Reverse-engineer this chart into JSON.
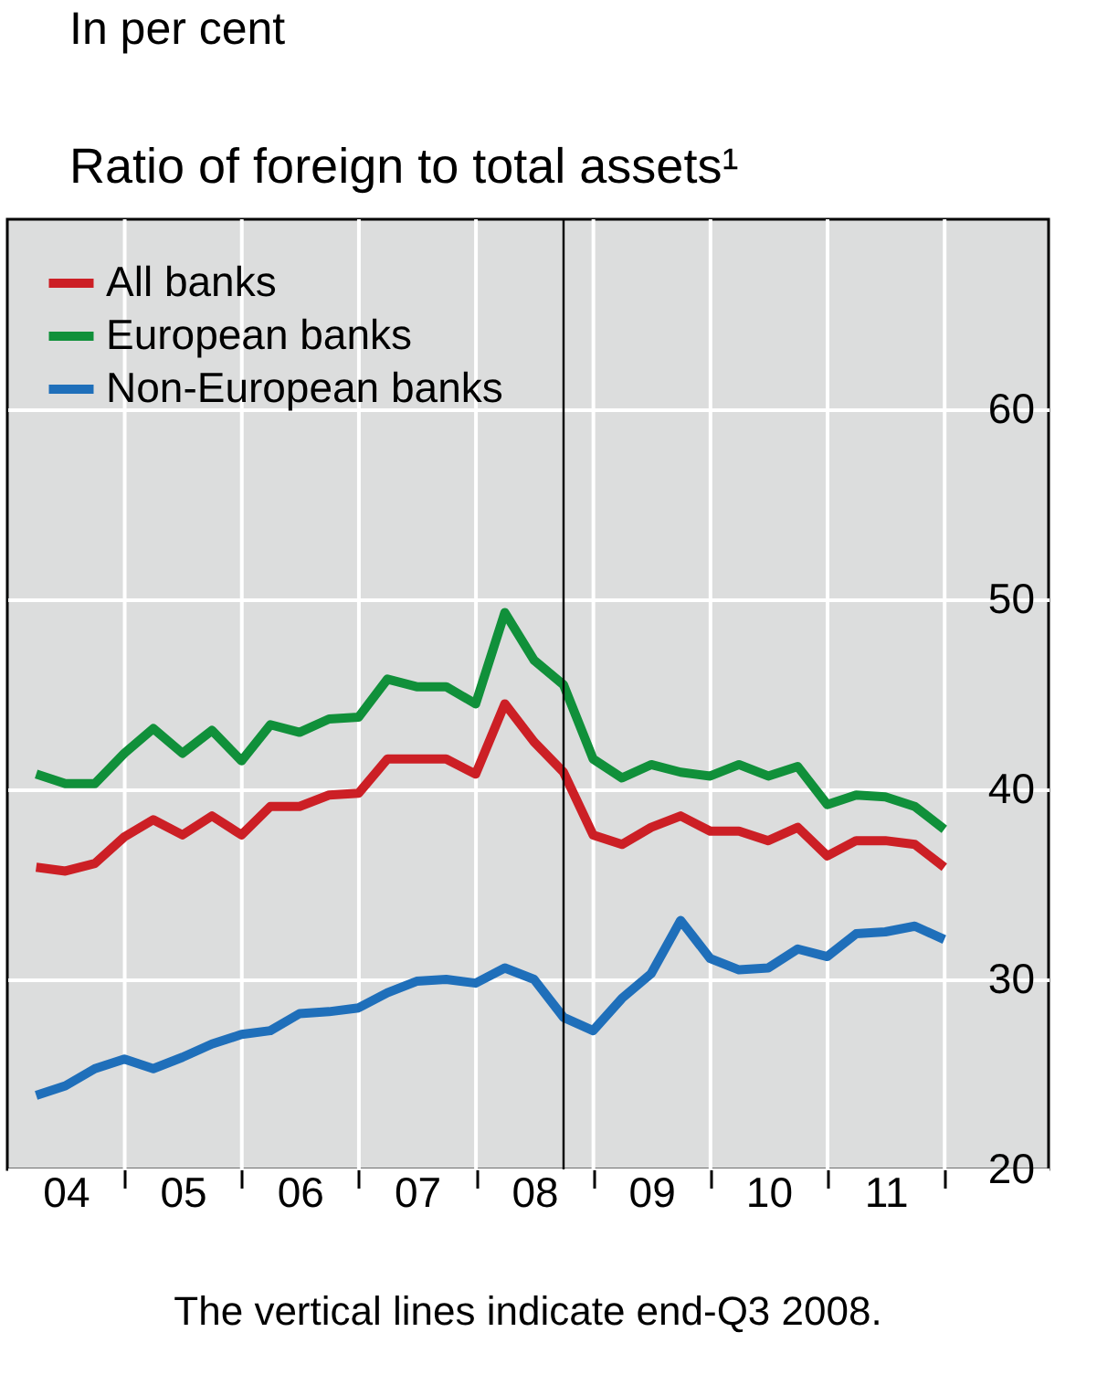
{
  "chart_data": {
    "type": "line",
    "title": "Ratio of foreign to total assets¹",
    "annotations": [
      "In per cent",
      "The vertical lines indicate end-Q3 2008."
    ],
    "x": [
      "2004-03-31",
      "2004-06-30",
      "2004-09-30",
      "2004-12-31",
      "2005-03-31",
      "2005-06-30",
      "2005-09-30",
      "2005-12-31",
      "2006-03-31",
      "2006-06-30",
      "2006-09-30",
      "2006-12-31",
      "2007-03-31",
      "2007-06-30",
      "2007-09-30",
      "2007-12-31",
      "2008-03-31",
      "2008-06-30",
      "2008-09-30",
      "2008-12-31",
      "2009-03-31",
      "2009-06-30",
      "2009-09-30",
      "2009-12-31",
      "2010-03-31",
      "2010-06-30",
      "2010-09-30",
      "2010-12-31",
      "2011-03-31",
      "2011-06-30",
      "2011-09-30",
      "2011-12-31"
    ],
    "series": [
      {
        "name": "All banks",
        "color": "#cc1f25",
        "values": [
          35.9,
          35.7,
          36.1,
          37.5,
          38.4,
          37.6,
          38.6,
          37.6,
          39.1,
          39.1,
          39.7,
          39.8,
          41.6,
          41.6,
          41.6,
          40.8,
          44.5,
          42.5,
          40.9,
          37.6,
          37.1,
          38.0,
          38.6,
          37.8,
          37.8,
          37.3,
          38.0,
          36.5,
          37.3,
          37.3,
          37.1,
          35.9
        ]
      },
      {
        "name": "European banks",
        "color": "#10903a",
        "values": [
          40.8,
          40.3,
          40.3,
          41.9,
          43.2,
          41.9,
          43.1,
          41.5,
          43.4,
          43.0,
          43.7,
          43.8,
          45.8,
          45.4,
          45.4,
          44.5,
          49.3,
          46.8,
          45.5,
          41.6,
          40.6,
          41.3,
          40.9,
          40.7,
          41.3,
          40.7,
          41.2,
          39.2,
          39.7,
          39.6,
          39.1,
          37.9
        ]
      },
      {
        "name": "Non-European banks",
        "color": "#1f6fba",
        "values": [
          23.9,
          24.4,
          25.3,
          25.8,
          25.3,
          25.9,
          26.6,
          27.1,
          27.3,
          28.2,
          28.3,
          28.5,
          29.3,
          29.9,
          30.0,
          29.8,
          30.6,
          30.0,
          28.0,
          27.3,
          29.0,
          30.3,
          33.1,
          31.1,
          30.5,
          30.6,
          31.6,
          31.2,
          32.4,
          32.5,
          32.8,
          32.1
        ]
      }
    ],
    "xlim": [
      "2004-01-01",
      "2012-11-20"
    ],
    "xticks": [
      {
        "value": "2004-07-01",
        "label": "04"
      },
      {
        "value": "2005-07-01",
        "label": "05"
      },
      {
        "value": "2006-07-01",
        "label": "06"
      },
      {
        "value": "2007-07-01",
        "label": "07"
      },
      {
        "value": "2008-07-01",
        "label": "08"
      },
      {
        "value": "2009-07-01",
        "label": "09"
      },
      {
        "value": "2010-07-01",
        "label": "10"
      },
      {
        "value": "2011-07-01",
        "label": "11"
      },
      {
        "value": "2005-01-01",
        "label": null
      },
      {
        "value": "2006-01-01",
        "label": null
      },
      {
        "value": "2007-01-01",
        "label": null
      },
      {
        "value": "2008-01-01",
        "label": null
      },
      {
        "value": "2009-01-01",
        "label": null
      },
      {
        "value": "2010-01-01",
        "label": null
      },
      {
        "value": "2011-01-01",
        "label": null
      },
      {
        "value": "2012-01-01",
        "label": null
      }
    ],
    "ylim": [
      20,
      70
    ],
    "yticks": [
      20,
      30,
      40,
      50,
      60
    ],
    "ref_lines": [
      {
        "axis": "x",
        "value": "2008-09-30",
        "label": null,
        "color": "#000000"
      }
    ],
    "grid": true,
    "legend": "top left",
    "line_style": "solid",
    "marker": "none"
  }
}
